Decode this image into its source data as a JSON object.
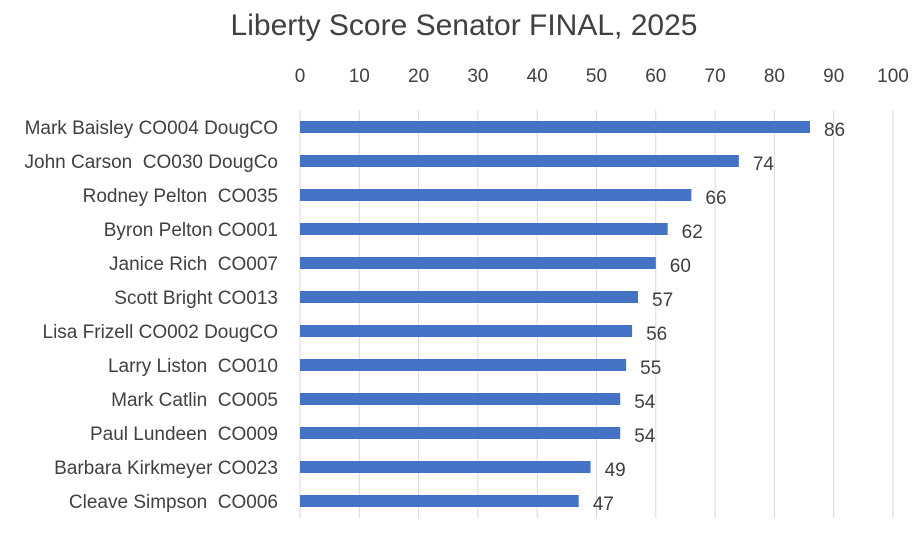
{
  "chart_data": {
    "type": "bar",
    "orientation": "horizontal",
    "title": "Liberty Score Senator FINAL, 2025",
    "categories": [
      "Mark Baisley CO004 DougCO",
      "John Carson  CO030 DougCo",
      "Rodney Pelton  CO035",
      "Byron Pelton CO001",
      "Janice Rich  CO007",
      "Scott Bright CO013",
      "Lisa Frizell CO002 DougCO",
      "Larry Liston  CO010",
      "Mark Catlin  CO005",
      "Paul Lundeen  CO009",
      "Barbara Kirkmeyer CO023",
      "Cleave Simpson  CO006"
    ],
    "values": [
      86,
      74,
      66,
      62,
      60,
      57,
      56,
      55,
      54,
      54,
      49,
      47
    ],
    "xlim": [
      0,
      100
    ],
    "xticks": [
      0,
      10,
      20,
      30,
      40,
      50,
      60,
      70,
      80,
      90,
      100
    ],
    "axis_position": "top",
    "grid": true,
    "legend": "none",
    "xlabel": "",
    "ylabel": "",
    "colors": {
      "bar": "#4472C4",
      "grid": "#D9D9D9",
      "text": "#404040"
    }
  }
}
